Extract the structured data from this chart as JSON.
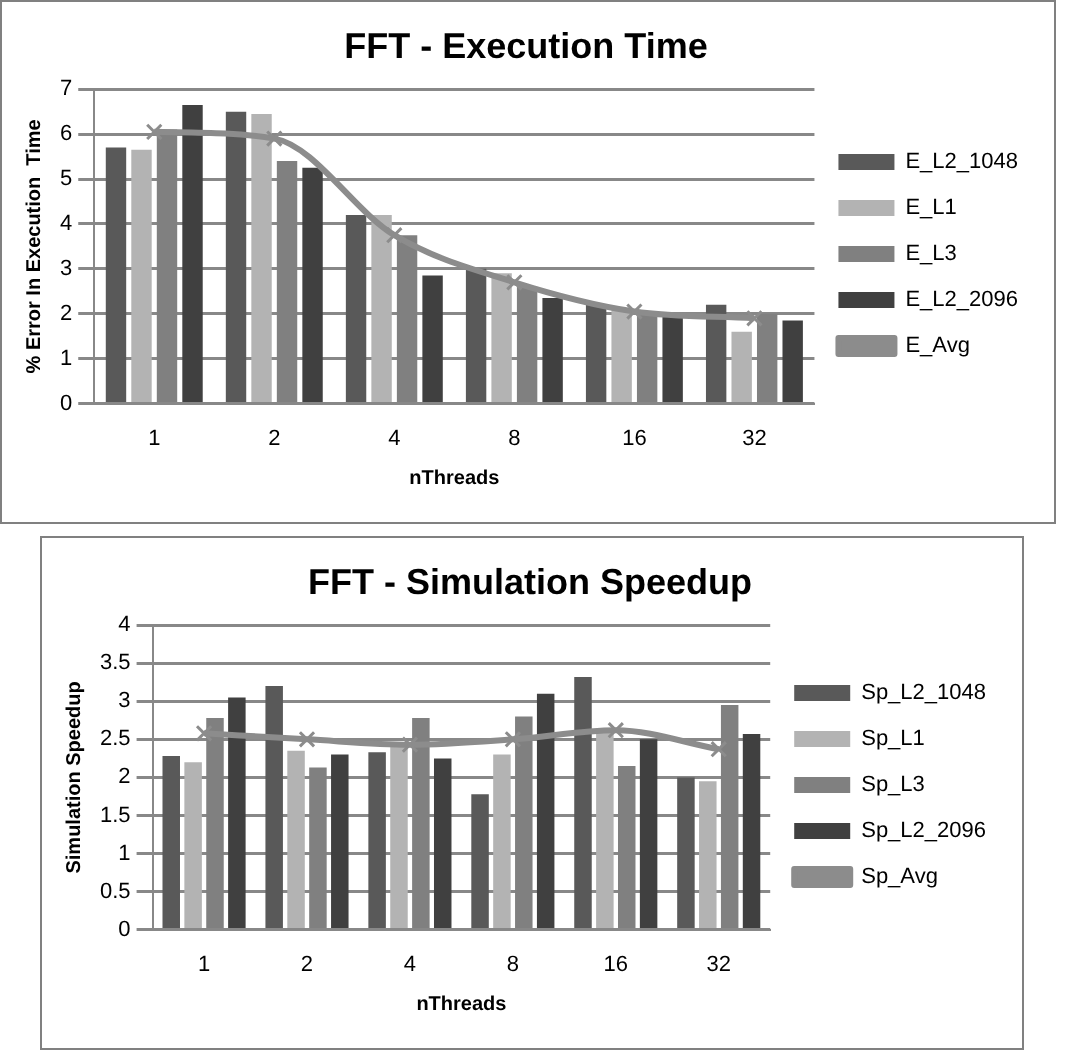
{
  "chart_data": [
    {
      "type": "bar",
      "title": "FFT - Execution Time",
      "xlabel": "nThreads",
      "ylabel": "% Error In Execution  Time",
      "categories": [
        "1",
        "2",
        "4",
        "8",
        "16",
        "32"
      ],
      "series": [
        {
          "name": "E_L2_1048",
          "color": "#595959",
          "values": [
            5.7,
            6.5,
            4.2,
            3.0,
            2.2,
            2.2
          ]
        },
        {
          "name": "E_L1",
          "color": "#b3b3b3",
          "values": [
            5.65,
            6.45,
            4.2,
            2.9,
            2.1,
            1.6
          ]
        },
        {
          "name": "E_L3",
          "color": "#808080",
          "values": [
            6.1,
            5.4,
            3.75,
            2.6,
            2.0,
            2.0
          ]
        },
        {
          "name": "E_L2_2096",
          "color": "#404040",
          "values": [
            6.65,
            5.25,
            2.85,
            2.35,
            1.95,
            1.85
          ]
        },
        {
          "name": "E_Avg",
          "type": "line",
          "color": "#8c8c8c",
          "values": [
            6.05,
            5.9,
            3.75,
            2.7,
            2.05,
            1.9
          ]
        }
      ],
      "ylim": [
        0,
        7
      ],
      "yticks": [
        0,
        1,
        2,
        3,
        4,
        5,
        6,
        7
      ],
      "grid": "y",
      "legend": "right",
      "marker": "cross"
    },
    {
      "type": "bar",
      "title": "FFT - Simulation Speedup",
      "xlabel": "nThreads",
      "ylabel": "Simulation Speedup",
      "categories": [
        "1",
        "2",
        "4",
        "8",
        "16",
        "32"
      ],
      "series": [
        {
          "name": "Sp_L2_1048",
          "color": "#595959",
          "values": [
            2.28,
            3.2,
            2.33,
            1.78,
            3.32,
            2.0
          ]
        },
        {
          "name": "Sp_L1",
          "color": "#b3b3b3",
          "values": [
            2.2,
            2.35,
            2.4,
            2.3,
            2.6,
            1.95
          ]
        },
        {
          "name": "Sp_L3",
          "color": "#808080",
          "values": [
            2.78,
            2.13,
            2.78,
            2.8,
            2.15,
            2.95
          ]
        },
        {
          "name": "Sp_L2_2096",
          "color": "#404040",
          "values": [
            3.05,
            2.3,
            2.25,
            3.1,
            2.5,
            2.57
          ]
        },
        {
          "name": "Sp_Avg",
          "type": "line",
          "color": "#8c8c8c",
          "values": [
            2.58,
            2.5,
            2.43,
            2.5,
            2.62,
            2.37
          ]
        }
      ],
      "ylim": [
        0,
        4
      ],
      "yticks": [
        0,
        0.5,
        1,
        1.5,
        2,
        2.5,
        3,
        3.5,
        4
      ],
      "grid": "y",
      "legend": "right",
      "marker": "cross"
    }
  ]
}
